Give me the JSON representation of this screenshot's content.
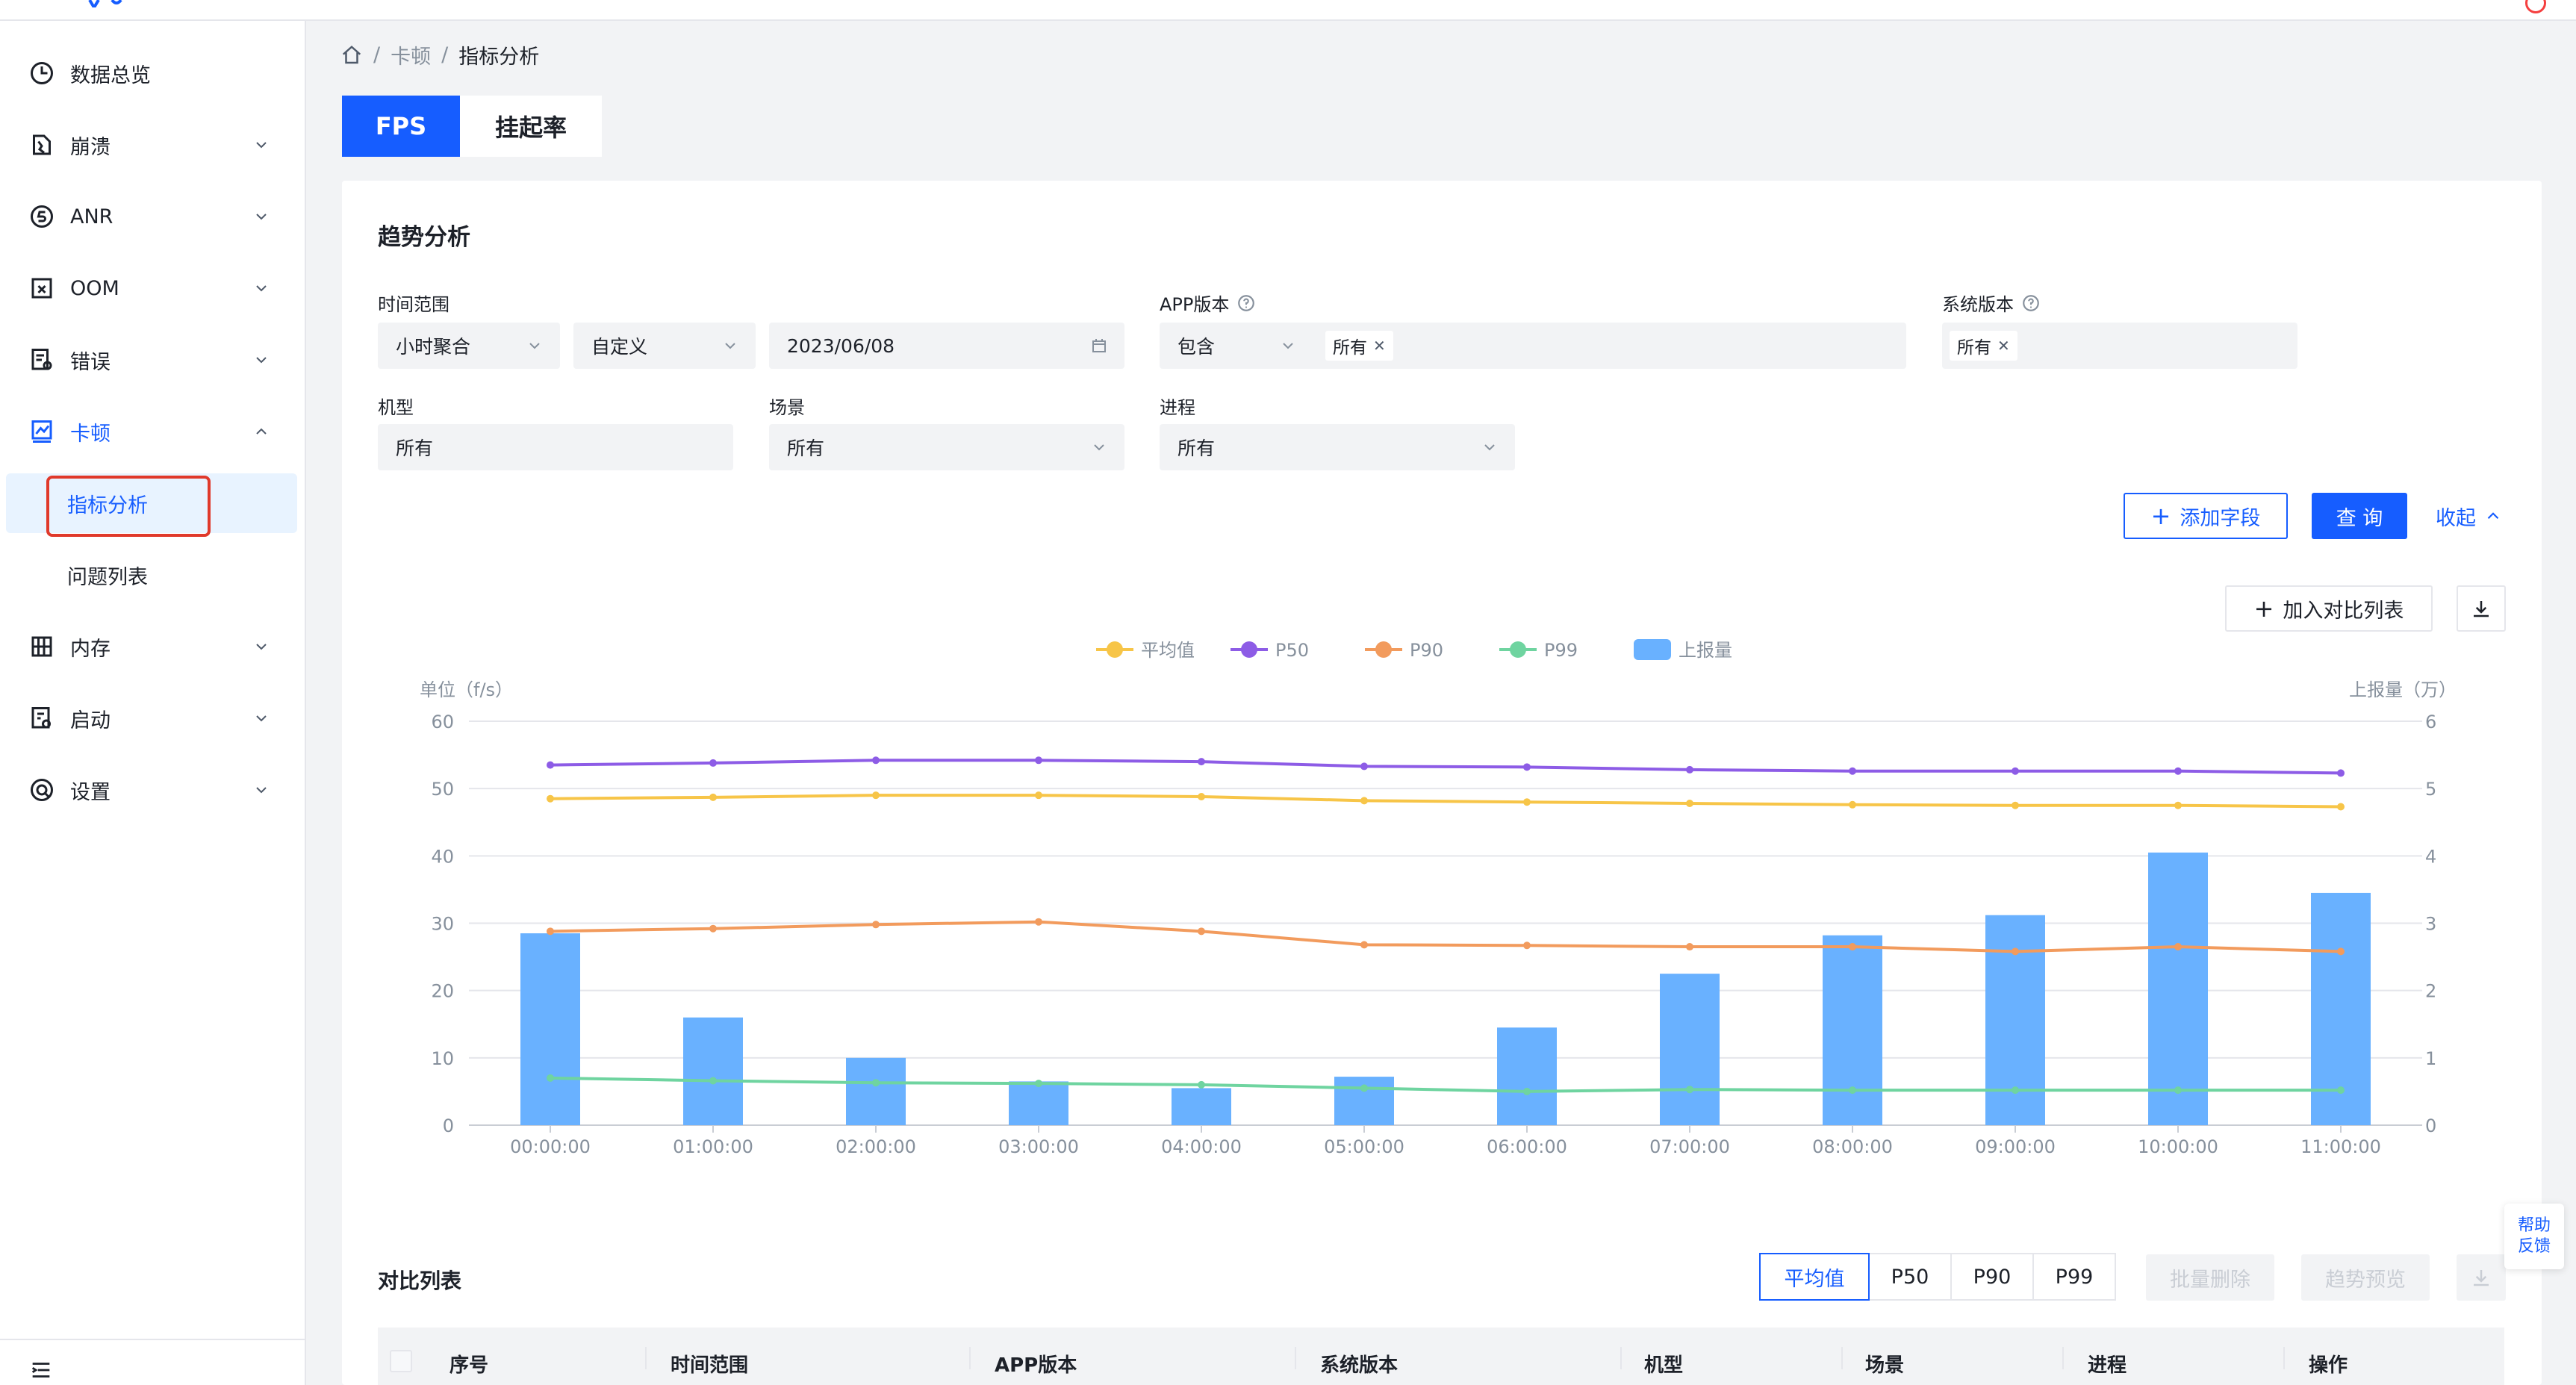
{
  "sidebar": {
    "items": [
      {
        "label": "数据总览",
        "icon": "clock-icon"
      },
      {
        "label": "崩溃",
        "icon": "crash-icon"
      },
      {
        "label": "ANR",
        "icon": "anr-icon"
      },
      {
        "label": "OOM",
        "icon": "oom-icon"
      },
      {
        "label": "错误",
        "icon": "error-icon"
      },
      {
        "label": "卡顿",
        "icon": "trend-icon"
      },
      {
        "label": "内存",
        "icon": "memory-icon"
      },
      {
        "label": "启动",
        "icon": "launch-icon"
      },
      {
        "label": "设置",
        "icon": "settings-icon"
      }
    ],
    "sub_items": [
      {
        "label": "指标分析"
      },
      {
        "label": "问题列表"
      }
    ]
  },
  "breadcrumb": {
    "items": [
      "卡顿",
      "指标分析"
    ],
    "separator": "/"
  },
  "tabs": [
    {
      "label": "FPS"
    },
    {
      "label": "挂起率"
    }
  ],
  "trend": {
    "title": "趋势分析",
    "time_range_label": "时间范围",
    "aggregation_value": "小时聚合",
    "range_mode_value": "自定义",
    "date_value": "2023/06/08",
    "app_version_label": "APP版本",
    "app_version_op": "包含",
    "app_version_tag": "所有",
    "os_version_label": "系统版本",
    "os_version_tag": "所有",
    "device_label": "机型",
    "device_value": "所有",
    "scene_label": "场景",
    "scene_value": "所有",
    "process_label": "进程",
    "process_value": "所有",
    "add_field_label": "添加字段",
    "query_label": "查 询",
    "collapse_label": "收起",
    "add_compare_label": "加入对比列表"
  },
  "chart_data": {
    "type": "bar",
    "legend": [
      "平均值",
      "P50",
      "P90",
      "P99",
      "上报量"
    ],
    "legend_position": "top-center",
    "categories": [
      "00:00:00",
      "01:00:00",
      "02:00:00",
      "03:00:00",
      "04:00:00",
      "05:00:00",
      "06:00:00",
      "07:00:00",
      "08:00:00",
      "09:00:00",
      "10:00:00",
      "11:00:00"
    ],
    "ylabel": "单位（f/s）",
    "ylabel_right": "上报量（万）",
    "ylim": [
      0,
      60
    ],
    "yticks": [
      0,
      10,
      20,
      30,
      40,
      50,
      60
    ],
    "ylim_right": [
      0,
      6
    ],
    "yticks_right": [
      0,
      1,
      2,
      3,
      4,
      5,
      6
    ],
    "grid": true,
    "series": [
      {
        "name": "上报量",
        "type": "bar",
        "axis": "right",
        "color": "#69b1ff",
        "values": [
          2.85,
          1.6,
          1.0,
          0.65,
          0.55,
          0.72,
          1.45,
          2.25,
          2.82,
          3.12,
          4.05,
          3.45
        ]
      },
      {
        "name": "平均值",
        "type": "line",
        "axis": "left",
        "color": "#f7c548",
        "values": [
          48.5,
          48.7,
          49.0,
          49.0,
          48.8,
          48.2,
          48.0,
          47.8,
          47.6,
          47.5,
          47.5,
          47.3
        ]
      },
      {
        "name": "P50",
        "type": "line",
        "axis": "left",
        "color": "#8d5ce6",
        "values": [
          53.5,
          53.8,
          54.2,
          54.2,
          54.0,
          53.3,
          53.2,
          52.8,
          52.6,
          52.6,
          52.6,
          52.3
        ]
      },
      {
        "name": "P90",
        "type": "line",
        "axis": "left",
        "color": "#f29b5d",
        "values": [
          28.8,
          29.2,
          29.8,
          30.2,
          28.8,
          26.8,
          26.7,
          26.5,
          26.5,
          25.8,
          26.5,
          25.8
        ]
      },
      {
        "name": "P99",
        "type": "line",
        "axis": "left",
        "color": "#6fd4a0",
        "values": [
          7.0,
          6.6,
          6.3,
          6.2,
          6.0,
          5.5,
          5.0,
          5.3,
          5.2,
          5.2,
          5.2,
          5.2
        ]
      }
    ]
  },
  "compare": {
    "title": "对比列表",
    "segments": [
      "平均值",
      "P50",
      "P90",
      "P99"
    ],
    "selected_segment": "平均值",
    "batch_delete_label": "批量删除",
    "trend_preview_label": "趋势预览",
    "columns": [
      "序号",
      "时间范围",
      "APP版本",
      "系统版本",
      "机型",
      "场景",
      "进程",
      "操作"
    ]
  },
  "help_float": {
    "line1": "帮助",
    "line2": "反馈"
  },
  "colors": {
    "primary": "#165dff",
    "highlight": "#e0392b"
  }
}
